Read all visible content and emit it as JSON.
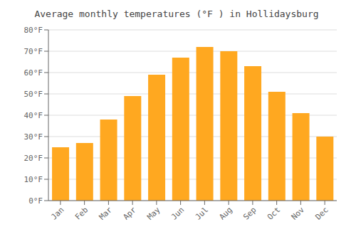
{
  "chart_data": {
    "type": "bar",
    "title": "Average monthly temperatures (°F ) in Hollidaysburg",
    "categories": [
      "Jan",
      "Feb",
      "Mar",
      "Apr",
      "May",
      "Jun",
      "Jul",
      "Aug",
      "Sep",
      "Oct",
      "Nov",
      "Dec"
    ],
    "values": [
      25,
      27,
      38,
      49,
      59,
      67,
      72,
      70,
      63,
      51,
      41,
      30
    ],
    "color": "#FFA820",
    "ylim": [
      0,
      80
    ],
    "yticks": [
      {
        "value": 0,
        "label": "0°F"
      },
      {
        "value": 10,
        "label": "10°F"
      },
      {
        "value": 20,
        "label": "20°F"
      },
      {
        "value": 30,
        "label": "30°F"
      },
      {
        "value": 40,
        "label": "40°F"
      },
      {
        "value": 50,
        "label": "50°F"
      },
      {
        "value": 60,
        "label": "60°F"
      },
      {
        "value": 70,
        "label": "70°F"
      },
      {
        "value": 80,
        "label": "80°F"
      }
    ],
    "grid": true
  }
}
